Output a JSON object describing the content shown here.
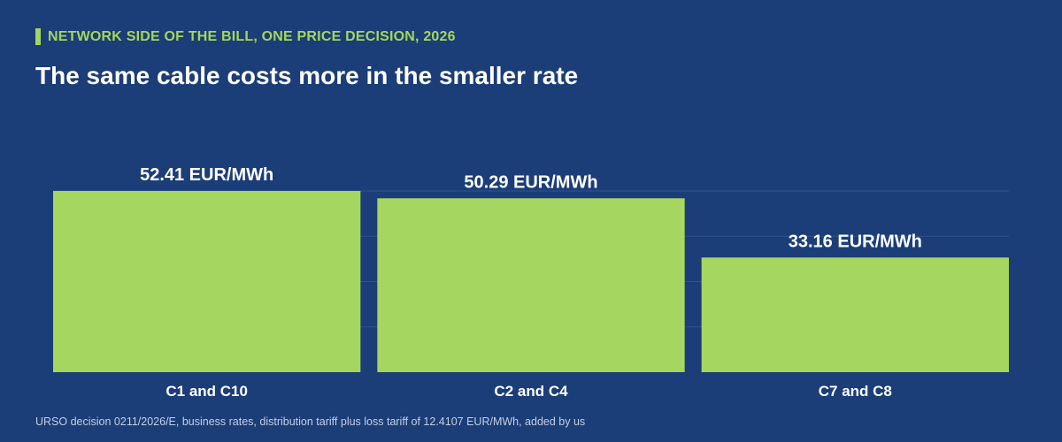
{
  "header": {
    "eyebrow": "NETWORK SIDE OF THE BILL, ONE PRICE DECISION, 2026",
    "title": "The same cable costs more in the smaller rate"
  },
  "footnote": "URSO decision 0211/2026/E, business rates, distribution tariff plus loss tariff of 12.4107 EUR/MWh, added by us",
  "colors": {
    "background": "#1b3d78",
    "accent": "#a5d65f",
    "bar": "#a5d65f",
    "gridline": "#2f5290"
  },
  "chart_data": {
    "type": "bar",
    "categories": [
      "C1 and C10",
      "C2 and C4",
      "C7 and C8"
    ],
    "values": [
      52.41,
      50.29,
      33.16
    ],
    "value_labels": [
      "52.41 EUR/MWh",
      "50.29 EUR/MWh",
      "33.16 EUR/MWh"
    ],
    "ylim": [
      0,
      52.41
    ],
    "grid": true,
    "title": "",
    "xlabel": "",
    "ylabel": ""
  }
}
